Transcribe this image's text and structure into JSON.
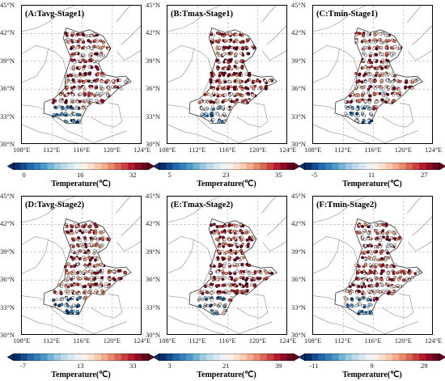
{
  "panels": [
    {
      "title": "(A:Tavg-Stage1)",
      "ticks": [
        "0",
        "16",
        "32"
      ],
      "cbar_label": "Temperature(℃)",
      "range": [
        0,
        32
      ]
    },
    {
      "title": "(B:Tmax-Stage1)",
      "ticks": [
        "5",
        "23",
        "35"
      ],
      "cbar_label": "Temperature(℃)",
      "range": [
        5,
        35
      ]
    },
    {
      "title": "(C:Tmin-Stage1)",
      "ticks": [
        "-5",
        "11",
        "27"
      ],
      "cbar_label": "Temperature(℃)",
      "range": [
        -5,
        27
      ]
    },
    {
      "title": "(D:Tavg-Stage2)",
      "ticks": [
        "-7",
        "13",
        "33"
      ],
      "cbar_label": "Temperature(℃)",
      "range": [
        -7,
        33
      ]
    },
    {
      "title": "(E:Tmax-Stage2)",
      "ticks": [
        "3",
        "21",
        "39"
      ],
      "cbar_label": "Temperature(℃)",
      "range": [
        3,
        39
      ]
    },
    {
      "title": "(F:Tmin-Stage2)",
      "ticks": [
        "-11",
        "9",
        "29"
      ],
      "cbar_label": "Temperature(℃)",
      "range": [
        -11,
        29
      ]
    }
  ],
  "lat_labels": [
    "45°N",
    "42°N",
    "39°N",
    "36°N",
    "33°N",
    "30°N"
  ],
  "lon_labels": [
    "108°E",
    "112°E",
    "116°E",
    "120°E",
    "124°E"
  ],
  "colormap": [
    "#08306b",
    "#2166ac",
    "#4393c3",
    "#92c5de",
    "#d1e5f0",
    "#f7f7f7",
    "#fddbc7",
    "#f4a582",
    "#d6604d",
    "#b2182b",
    "#67001f"
  ],
  "colors": {
    "frame": "#000000",
    "grid": "#b0b0b0",
    "boundary": "#8a8a8a",
    "region": "#333333"
  }
}
